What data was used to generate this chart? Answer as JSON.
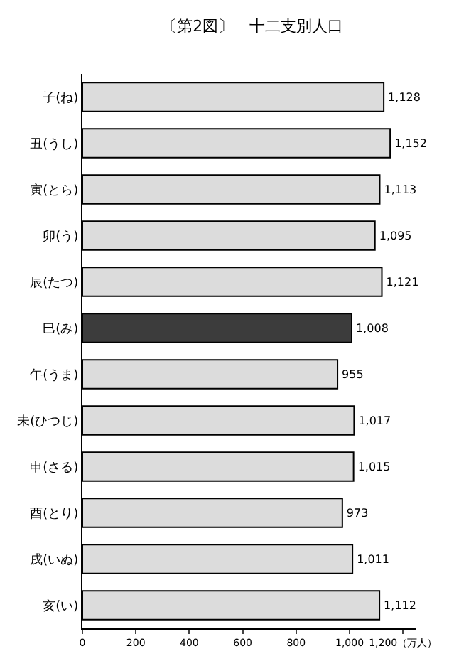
{
  "chart_data": {
    "type": "bar",
    "orientation": "horizontal",
    "title": "〔第2図〕　十二支別人口",
    "categories": [
      "子(ね)",
      "丑(うし)",
      "寅(とら)",
      "卯(う)",
      "辰(たつ)",
      "巳(み)",
      "午(うま)",
      "未(ひつじ)",
      "申(さる)",
      "酉(とり)",
      "戌(いぬ)",
      "亥(い)"
    ],
    "values": [
      1128,
      1152,
      1113,
      1095,
      1121,
      1008,
      955,
      1017,
      1015,
      973,
      1011,
      1112
    ],
    "colors": [
      "#dcdcdc",
      "#dcdcdc",
      "#dcdcdc",
      "#dcdcdc",
      "#dcdcdc",
      "#3c3c3c",
      "#dcdcdc",
      "#dcdcdc",
      "#dcdcdc",
      "#dcdcdc",
      "#dcdcdc",
      "#dcdcdc"
    ],
    "value_labels": [
      "1,128",
      "1,152",
      "1,113",
      "1,095",
      "1,121",
      "1,008",
      "955",
      "1,017",
      "1,015",
      "973",
      "1,011",
      "1,112"
    ],
    "xlim": [
      0,
      1250
    ],
    "xticks": [
      0,
      200,
      400,
      600,
      800,
      {
        "value": 1000,
        "label": "1,000"
      },
      {
        "value": 1200,
        "label": "1,200（万人）"
      }
    ],
    "legend": false
  }
}
